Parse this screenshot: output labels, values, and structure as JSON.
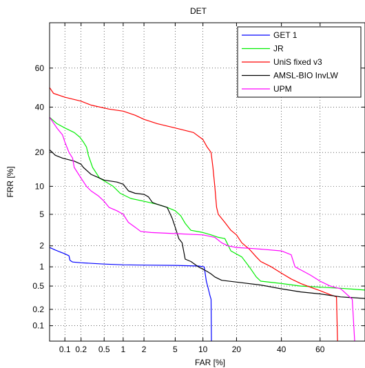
{
  "chart_data": {
    "type": "line",
    "title": "DET",
    "xlabel": "FAR [%]",
    "ylabel": "FRR [%]",
    "x_scale": "probit",
    "y_scale": "probit",
    "xlim": [
      0.05,
      80
    ],
    "ylim": [
      0.05,
      80
    ],
    "x_ticks": [
      {
        "value": 0.1,
        "label": "0.1"
      },
      {
        "value": 0.2,
        "label": "0.2"
      },
      {
        "value": 0.5,
        "label": "0.5"
      },
      {
        "value": 1,
        "label": "1"
      },
      {
        "value": 2,
        "label": "2"
      },
      {
        "value": 5,
        "label": "5"
      },
      {
        "value": 10,
        "label": "10"
      },
      {
        "value": 20,
        "label": "20"
      },
      {
        "value": 40,
        "label": "40"
      },
      {
        "value": 60,
        "label": "60"
      }
    ],
    "y_ticks": [
      {
        "value": 0.1,
        "label": "0.1"
      },
      {
        "value": 0.2,
        "label": "0.2"
      },
      {
        "value": 0.5,
        "label": "0.5"
      },
      {
        "value": 1,
        "label": "1"
      },
      {
        "value": 2,
        "label": "2"
      },
      {
        "value": 5,
        "label": "5"
      },
      {
        "value": 10,
        "label": "10"
      },
      {
        "value": 20,
        "label": "20"
      },
      {
        "value": 40,
        "label": "40"
      },
      {
        "value": 60,
        "label": "60"
      }
    ],
    "grid": true,
    "grid_style": "dotted",
    "legend_position": "top-right",
    "series": [
      {
        "name": "GET 1",
        "color": "#0000ff",
        "points": [
          [
            0.05,
            1.9
          ],
          [
            0.065,
            1.75
          ],
          [
            0.08,
            1.65
          ],
          [
            0.09,
            1.6
          ],
          [
            0.1,
            1.55
          ],
          [
            0.12,
            1.45
          ],
          [
            0.125,
            1.25
          ],
          [
            0.14,
            1.18
          ],
          [
            0.2,
            1.15
          ],
          [
            0.5,
            1.1
          ],
          [
            1,
            1.07
          ],
          [
            2,
            1.06
          ],
          [
            5,
            1.05
          ],
          [
            9,
            1.03
          ],
          [
            10.3,
            1.0
          ],
          [
            10.4,
            0.9
          ],
          [
            10.8,
            0.6
          ],
          [
            11.3,
            0.45
          ],
          [
            11.7,
            0.35
          ],
          [
            12.0,
            0.3
          ],
          [
            12.1,
            0.05
          ]
        ]
      },
      {
        "name": "JR",
        "color": "#00ee00",
        "points": [
          [
            0.05,
            35
          ],
          [
            0.07,
            32
          ],
          [
            0.1,
            30
          ],
          [
            0.15,
            28
          ],
          [
            0.19,
            26
          ],
          [
            0.22,
            24
          ],
          [
            0.25,
            22
          ],
          [
            0.27,
            19
          ],
          [
            0.32,
            15
          ],
          [
            0.42,
            12
          ],
          [
            0.7,
            10
          ],
          [
            0.9,
            8.5
          ],
          [
            1.3,
            7.5
          ],
          [
            2,
            7
          ],
          [
            3,
            6.5
          ],
          [
            4,
            6
          ],
          [
            5,
            5.5
          ],
          [
            5.8,
            4.8
          ],
          [
            6.5,
            3.9
          ],
          [
            7.5,
            3.2
          ],
          [
            10,
            3.0
          ],
          [
            12,
            2.8
          ],
          [
            14,
            2.6
          ],
          [
            16,
            2.5
          ],
          [
            18,
            1.7
          ],
          [
            22,
            1.4
          ],
          [
            25,
            1.0
          ],
          [
            28,
            0.7
          ],
          [
            30,
            0.6
          ],
          [
            40,
            0.55
          ],
          [
            50,
            0.5
          ],
          [
            60,
            0.48
          ],
          [
            70,
            0.46
          ],
          [
            80,
            0.43
          ]
        ]
      },
      {
        "name": "UniS fixed v3",
        "color": "#ff0000",
        "points": [
          [
            0.05,
            50
          ],
          [
            0.06,
            47
          ],
          [
            0.1,
            45
          ],
          [
            0.2,
            43
          ],
          [
            0.3,
            41
          ],
          [
            0.6,
            39
          ],
          [
            1,
            38
          ],
          [
            1.5,
            36
          ],
          [
            2,
            34
          ],
          [
            3,
            32
          ],
          [
            5,
            30
          ],
          [
            8,
            28
          ],
          [
            10,
            25
          ],
          [
            11,
            22
          ],
          [
            12,
            20
          ],
          [
            12.5,
            15
          ],
          [
            13,
            10
          ],
          [
            13.5,
            6
          ],
          [
            14,
            5
          ],
          [
            16,
            4
          ],
          [
            18,
            3.2
          ],
          [
            20,
            2.8
          ],
          [
            22,
            2.2
          ],
          [
            25,
            1.8
          ],
          [
            28,
            1.4
          ],
          [
            30,
            1.2
          ],
          [
            35,
            1.0
          ],
          [
            40,
            0.8
          ],
          [
            45,
            0.65
          ],
          [
            50,
            0.55
          ],
          [
            55,
            0.48
          ],
          [
            60,
            0.42
          ],
          [
            65,
            0.36
          ],
          [
            68,
            0.33
          ],
          [
            68.5,
            0.05
          ]
        ]
      },
      {
        "name": "AMSL-BIO InvLW",
        "color": "#000000",
        "points": [
          [
            0.05,
            21
          ],
          [
            0.065,
            19
          ],
          [
            0.09,
            18
          ],
          [
            0.15,
            17
          ],
          [
            0.2,
            16
          ],
          [
            0.22,
            15
          ],
          [
            0.3,
            13
          ],
          [
            0.5,
            11.5
          ],
          [
            0.8,
            11
          ],
          [
            1,
            10.5
          ],
          [
            1.2,
            9
          ],
          [
            1.5,
            8.5
          ],
          [
            2,
            8.3
          ],
          [
            2.3,
            7.8
          ],
          [
            2.6,
            6.8
          ],
          [
            3,
            6.5
          ],
          [
            4,
            6
          ],
          [
            4.6,
            4.5
          ],
          [
            5,
            3.5
          ],
          [
            5.5,
            2.5
          ],
          [
            6,
            2.2
          ],
          [
            6.5,
            1.3
          ],
          [
            7.5,
            1.2
          ],
          [
            9,
            1.0
          ],
          [
            11,
            0.85
          ],
          [
            12,
            0.78
          ],
          [
            13,
            0.7
          ],
          [
            15,
            0.62
          ],
          [
            20,
            0.58
          ],
          [
            30,
            0.52
          ],
          [
            40,
            0.45
          ],
          [
            50,
            0.4
          ],
          [
            60,
            0.37
          ],
          [
            70,
            0.33
          ],
          [
            80,
            0.31
          ]
        ]
      },
      {
        "name": "UPM",
        "color": "#ff00ff",
        "points": [
          [
            0.05,
            35
          ],
          [
            0.07,
            30
          ],
          [
            0.09,
            27
          ],
          [
            0.1,
            24
          ],
          [
            0.12,
            20
          ],
          [
            0.14,
            18
          ],
          [
            0.15,
            15
          ],
          [
            0.2,
            12
          ],
          [
            0.25,
            10
          ],
          [
            0.3,
            9
          ],
          [
            0.4,
            8
          ],
          [
            0.5,
            7
          ],
          [
            0.6,
            6
          ],
          [
            0.8,
            5.5
          ],
          [
            1,
            5
          ],
          [
            1.2,
            4
          ],
          [
            1.5,
            3.5
          ],
          [
            1.8,
            3.1
          ],
          [
            2.5,
            3.0
          ],
          [
            5,
            2.9
          ],
          [
            10,
            2.8
          ],
          [
            13,
            2.6
          ],
          [
            15,
            2.2
          ],
          [
            17,
            2.0
          ],
          [
            20,
            1.9
          ],
          [
            25,
            1.85
          ],
          [
            30,
            1.8
          ],
          [
            40,
            1.7
          ],
          [
            45,
            1.5
          ],
          [
            47,
            1.0
          ],
          [
            50,
            0.9
          ],
          [
            55,
            0.75
          ],
          [
            60,
            0.6
          ],
          [
            65,
            0.5
          ],
          [
            70,
            0.45
          ],
          [
            75,
            0.3
          ],
          [
            76,
            0.05
          ]
        ]
      }
    ]
  }
}
